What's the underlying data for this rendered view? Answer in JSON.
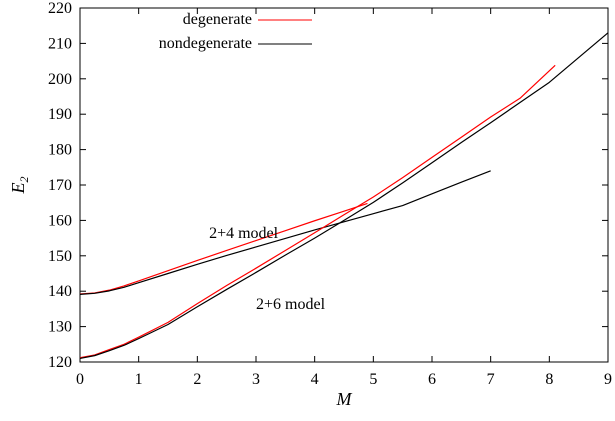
{
  "chart_data": {
    "type": "line",
    "xlabel": "M",
    "ylabel_main": "E",
    "ylabel_sub": "2",
    "xlim": [
      0,
      9
    ],
    "ylim": [
      120,
      220
    ],
    "xticks": [
      "0",
      "1",
      "2",
      "3",
      "4",
      "5",
      "6",
      "7",
      "8",
      "9"
    ],
    "yticks": [
      "120",
      "130",
      "140",
      "150",
      "160",
      "170",
      "180",
      "190",
      "200",
      "210",
      "220"
    ],
    "grid": false,
    "legend_position": "top-left",
    "legend": [
      {
        "label": "degenerate",
        "color": "#ff0000"
      },
      {
        "label": "nondegenerate",
        "color": "#000000"
      }
    ],
    "annotations": [
      {
        "text": "2+4 model",
        "x": 2.2,
        "y": 155
      },
      {
        "text": "2+6 model",
        "x": 3.0,
        "y": 135
      }
    ],
    "series": [
      {
        "model": "2+4",
        "kind": "degenerate",
        "color": "#ff0000",
        "x": [
          0,
          0.25,
          0.5,
          0.75,
          1.0,
          1.5,
          2.0,
          2.5,
          3.0,
          3.5,
          4.0,
          4.5,
          4.9
        ],
        "y": [
          139.2,
          139.5,
          140.3,
          141.5,
          142.9,
          145.8,
          148.7,
          151.5,
          154.3,
          157.1,
          159.9,
          162.6,
          164.8
        ]
      },
      {
        "model": "2+4",
        "kind": "nondegenerate",
        "color": "#000000",
        "x": [
          0,
          0.25,
          0.5,
          0.75,
          1.0,
          1.5,
          2.0,
          2.5,
          3.0,
          3.5,
          4.0,
          4.5,
          5.0,
          5.5,
          6.0,
          6.5,
          7.0
        ],
        "y": [
          139.1,
          139.4,
          140.1,
          141.1,
          142.4,
          145.0,
          147.6,
          150.1,
          152.5,
          154.9,
          157.3,
          159.6,
          161.9,
          164.2,
          167.5,
          170.8,
          174.0
        ]
      },
      {
        "model": "2+6",
        "kind": "degenerate",
        "color": "#ff0000",
        "x": [
          0,
          0.25,
          0.5,
          0.75,
          1.0,
          1.5,
          2.0,
          2.5,
          3.0,
          3.5,
          4.0,
          4.5,
          5.0,
          5.5,
          6.0,
          6.5,
          7.0,
          7.5,
          8.1
        ],
        "y": [
          121.2,
          122.0,
          123.5,
          125.0,
          127.0,
          131.2,
          136.5,
          141.6,
          146.5,
          151.5,
          156.5,
          161.6,
          166.6,
          172.1,
          177.8,
          183.5,
          189.2,
          194.5,
          203.8
        ]
      },
      {
        "model": "2+6",
        "kind": "nondegenerate",
        "color": "#000000",
        "x": [
          0,
          0.25,
          0.5,
          0.75,
          1.0,
          1.5,
          2.0,
          2.5,
          3.0,
          3.5,
          4.0,
          4.5,
          5.0,
          5.5,
          6.0,
          6.5,
          7.0,
          7.5,
          8.0,
          8.5,
          9.0
        ],
        "y": [
          121.0,
          121.8,
          123.2,
          124.7,
          126.6,
          130.6,
          135.6,
          140.5,
          145.3,
          150.2,
          155.0,
          160.0,
          165.1,
          170.6,
          176.3,
          182.0,
          187.6,
          193.3,
          199.0,
          206.0,
          213.0
        ]
      }
    ]
  }
}
